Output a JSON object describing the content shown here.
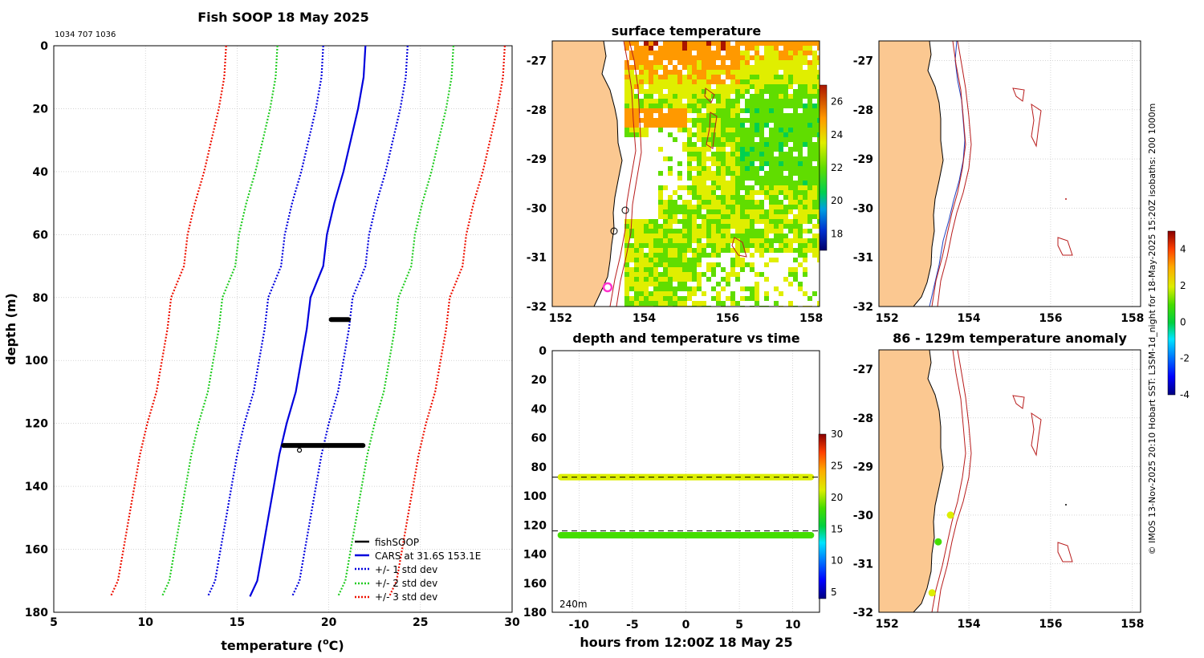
{
  "chart_data": [
    {
      "id": "profile",
      "type": "line",
      "title": "Fish SOOP 18 May 2025",
      "subtitle": "1034 707 1036",
      "xlabel_prefix": "temperature (",
      "xlabel_unit": "o",
      "xlabel_suffix": "C)",
      "ylabel": "depth (m)",
      "xlim": [
        5,
        30
      ],
      "ylim": [
        180,
        0
      ],
      "xticks": [
        "5",
        "10",
        "15",
        "20",
        "25",
        "30"
      ],
      "yticks": [
        "0",
        "20",
        "40",
        "60",
        "80",
        "100",
        "120",
        "140",
        "160",
        "180"
      ],
      "depth": [
        0,
        10,
        20,
        30,
        40,
        50,
        60,
        70,
        80,
        90,
        100,
        110,
        120,
        130,
        140,
        150,
        160,
        170,
        175
      ],
      "cars_mean": [
        22.0,
        21.9,
        21.6,
        21.2,
        20.8,
        20.3,
        19.9,
        19.7,
        19.0,
        18.8,
        18.5,
        18.2,
        17.7,
        17.3,
        17.0,
        16.7,
        16.4,
        16.1,
        15.7
      ],
      "series": [
        {
          "name": "fishSOOP",
          "color": "#000000",
          "style": "solid"
        },
        {
          "name": "CARS at 31.6S 153.1E",
          "color": "#0000dd",
          "style": "solid",
          "offset": 0
        },
        {
          "name": "+/- 1 std dev",
          "color": "#0000dd",
          "style": "dotted",
          "offset": 2.3
        },
        {
          "name": "+/- 2 std dev",
          "color": "#22cc22",
          "style": "dotted",
          "offset": 4.8
        },
        {
          "name": "+/- 3 std dev",
          "color": "#ee1100",
          "style": "dotted",
          "offset": 7.6
        }
      ],
      "observations": [
        {
          "depth": 87,
          "temp_min": 20.0,
          "temp_max": 21.2
        },
        {
          "depth": 127,
          "temp_min": 17.4,
          "temp_max": 22.0
        }
      ]
    },
    {
      "id": "sst_map",
      "type": "heatmap",
      "title": "surface temperature",
      "xticks": [
        "152",
        "154",
        "156",
        "158"
      ],
      "yticks": [
        "-27",
        "-28",
        "-29",
        "-30",
        "-31",
        "-32"
      ],
      "xlim": [
        151.8,
        158.2
      ],
      "ylim": [
        -32,
        -26.6
      ],
      "colorbar_range": [
        17,
        27
      ],
      "colorbar_ticks": [
        "26",
        "24",
        "22",
        "20",
        "18"
      ]
    },
    {
      "id": "depth_time",
      "type": "scatter",
      "title": "depth and temperature vs time",
      "xlabel": "hours from 12:00Z 18 May 25",
      "xticks": [
        "-10",
        "-5",
        "0",
        "5",
        "10"
      ],
      "yticks": [
        "0",
        "20",
        "40",
        "60",
        "80",
        "100",
        "120",
        "140",
        "160",
        "180"
      ],
      "xlim": [
        -12.5,
        12.5
      ],
      "ylim": [
        180,
        0
      ],
      "bottom_depth_label": "240m",
      "tracks": [
        {
          "depth": 87,
          "x_start": -12,
          "x_end": 12,
          "temp": 21.5
        },
        {
          "depth": 127,
          "x_start": -12,
          "x_end": 12,
          "temp": 18.5
        }
      ],
      "dashed_depths": [
        87,
        124
      ],
      "colorbar_range": [
        4,
        30
      ],
      "colorbar_ticks": [
        "30",
        "25",
        "20",
        "15",
        "10",
        "5"
      ]
    },
    {
      "id": "isobath_map",
      "type": "scatter",
      "xticks": [
        "152",
        "154",
        "156",
        "158"
      ],
      "yticks": [
        "-27",
        "-28",
        "-29",
        "-30",
        "-31",
        "-32"
      ],
      "xlim": [
        151.8,
        158.2
      ],
      "ylim": [
        -32,
        -26.6
      ]
    },
    {
      "id": "anomaly_map",
      "type": "scatter",
      "title": "86 - 129m temperature anomaly",
      "xticks": [
        "152",
        "154",
        "156",
        "158"
      ],
      "yticks": [
        "-27",
        "-28",
        "-29",
        "-30",
        "-31",
        "-32"
      ],
      "xlim": [
        151.8,
        158.2
      ],
      "ylim": [
        -32,
        -26.6
      ],
      "points": [
        {
          "lon": 153.55,
          "lat": -30.0,
          "anomaly": 1.6
        },
        {
          "lon": 153.25,
          "lat": -30.55,
          "anomaly": 0.3
        },
        {
          "lon": 153.1,
          "lat": -31.6,
          "anomaly": 1.8
        }
      ],
      "colorbar_range": [
        -4,
        5
      ],
      "colorbar_ticks": [
        "4",
        "2",
        "0",
        "-2",
        "-4"
      ]
    }
  ],
  "colors": {
    "land": "#fbc891",
    "isobath_200": "#2040c0",
    "isobath_1000": "#b81c1c",
    "std1": "#0000dd",
    "std2": "#22cc22",
    "std3": "#ee1100"
  },
  "footer_text": "© IMOS 13-Nov-2025 20:10 Hobart SST: L3SM-1d_night for 18-May-2025 15:20Z isobaths: 200  1000m"
}
